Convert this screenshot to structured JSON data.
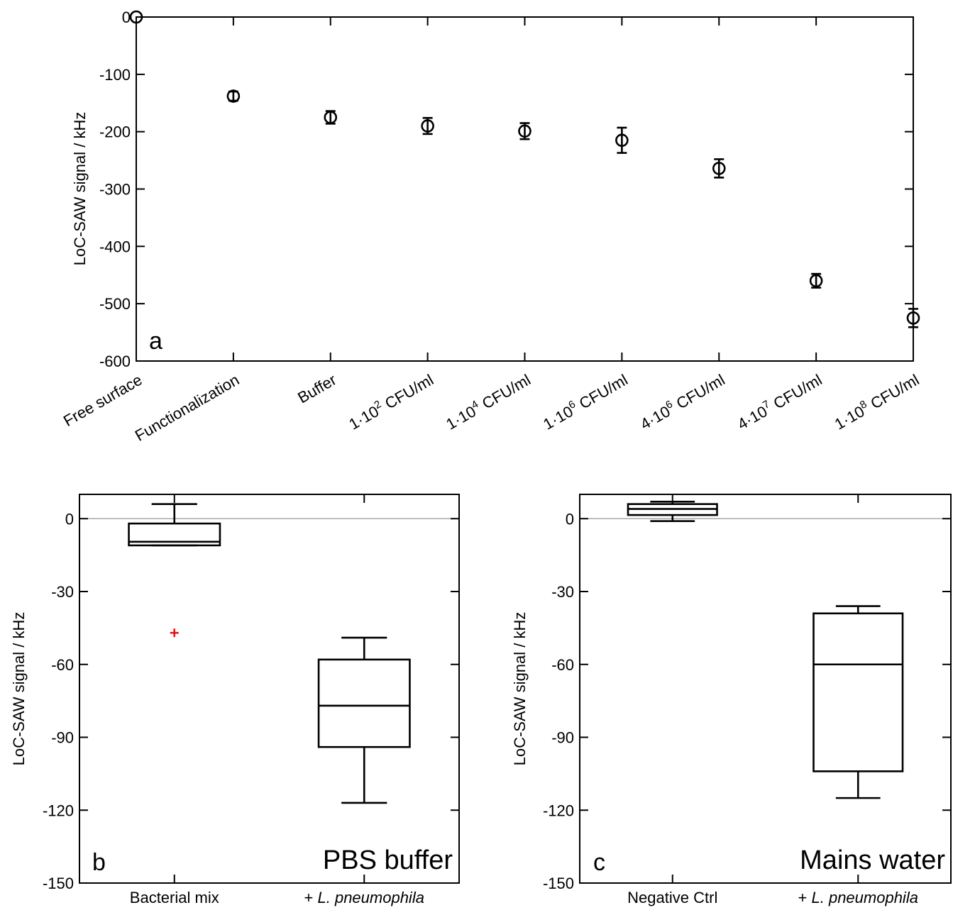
{
  "chart_data": [
    {
      "panel": "a",
      "type": "scatter",
      "ylabel": "LoC-SAW signal / kHz",
      "ylim": [
        -600,
        0
      ],
      "yticks": [
        0,
        -100,
        -200,
        -300,
        -400,
        -500,
        -600
      ],
      "grid": false,
      "categories": [
        {
          "base": "Free surface"
        },
        {
          "base": "Functionalization"
        },
        {
          "base": "Buffer"
        },
        {
          "base": "1·10",
          "sup": "2",
          "tail": " CFU/ml"
        },
        {
          "base": "1·10",
          "sup": "4",
          "tail": " CFU/ml"
        },
        {
          "base": "1·10",
          "sup": "6",
          "tail": " CFU/ml"
        },
        {
          "base": "4·10",
          "sup": "6",
          "tail": " CFU/ml"
        },
        {
          "base": "4·10",
          "sup": "7",
          "tail": " CFU/ml"
        },
        {
          "base": "1·10",
          "sup": "8",
          "tail": " CFU/ml"
        }
      ],
      "series": [
        {
          "values": [
            0,
            -138,
            -175,
            -190,
            -199,
            -215,
            -264,
            -460,
            -525
          ],
          "err": [
            0,
            8,
            11,
            14,
            14,
            22,
            16,
            12,
            16
          ]
        }
      ]
    },
    {
      "panel": "b",
      "type": "box",
      "caption": "PBS buffer",
      "ylabel": "LoC-SAW signal / kHz",
      "ylim": [
        -150,
        10
      ],
      "yticks": [
        0,
        -30,
        -60,
        -90,
        -120,
        -150
      ],
      "zero_line": true,
      "categories": [
        "Bacterial mix",
        "+ L. pneumophila"
      ],
      "boxes": [
        {
          "whisker_high": 6,
          "q3": -2,
          "median": -9.5,
          "q1": -11,
          "whisker_low": -11,
          "outliers": [
            -47
          ]
        },
        {
          "whisker_high": -49,
          "q3": -58,
          "median": -77,
          "q1": -94,
          "whisker_low": -117,
          "outliers": []
        }
      ],
      "outlier_color": "#e8141c"
    },
    {
      "panel": "c",
      "type": "box",
      "caption": "Mains water",
      "ylabel": "LoC-SAW signal / kHz",
      "ylim": [
        -150,
        10
      ],
      "yticks": [
        0,
        -30,
        -60,
        -90,
        -120,
        -150
      ],
      "zero_line": true,
      "categories": [
        "Negative Ctrl",
        "+ L. pneumophila"
      ],
      "boxes": [
        {
          "whisker_high": 7,
          "q3": 6,
          "median": 4,
          "q1": 1.5,
          "whisker_low": -1,
          "outliers": []
        },
        {
          "whisker_high": -36,
          "q3": -39,
          "median": -60,
          "q1": -104,
          "whisker_low": -115,
          "outliers": []
        }
      ],
      "outlier_color": "#e8141c"
    }
  ]
}
